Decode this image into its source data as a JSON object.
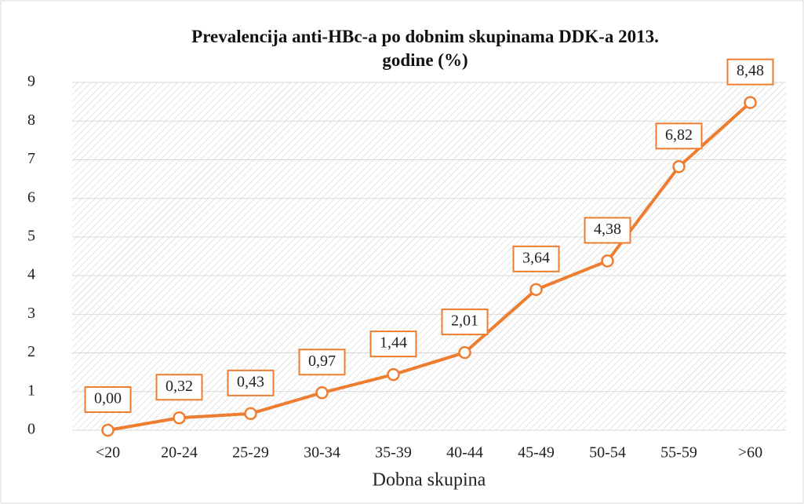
{
  "chart_data": {
    "type": "line",
    "title": "Prevalencija anti-HBc-a po dobnim skupinama DDK-a 2013. godine (%)",
    "x_label": "Dobna skupina",
    "categories": [
      "<20",
      "20-24",
      "25-29",
      "30-34",
      "35-39",
      "40-44",
      "45-49",
      "50-54",
      "55-59",
      ">60"
    ],
    "values": [
      0,
      0.32,
      0.43,
      0.97,
      1.44,
      2.01,
      3.64,
      4.38,
      6.82,
      8.48
    ],
    "value_labels": [
      "0,00",
      "0,32",
      "0,43",
      "0,97",
      "1,44",
      "2,01",
      "3,64",
      "4,38",
      "6,82",
      "8,48"
    ],
    "color": "#ed7d31",
    "ylim": [
      0,
      9
    ],
    "yticks": [
      0,
      1,
      2,
      3,
      4,
      5,
      6,
      7,
      8,
      9
    ],
    "grid": true
  }
}
